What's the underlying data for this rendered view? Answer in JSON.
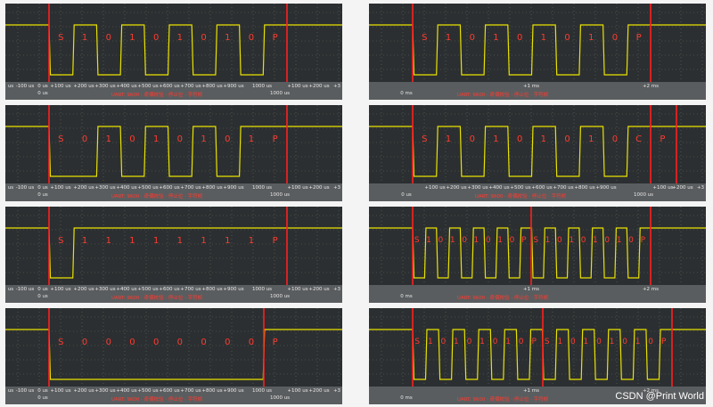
{
  "watermark": "CSDN @Print World",
  "colors": {
    "background": "#2c2f31",
    "axis_bar": "#5a5d5f",
    "signal": "#e8e200",
    "marker": "#ff1f1f",
    "grid": "#5d6f5d"
  },
  "panels": [
    {
      "id": "left-1",
      "bits": [
        "S",
        "1",
        "0",
        "1",
        "0",
        "1",
        "0",
        "1",
        "0",
        "P"
      ],
      "ticks": [
        "us",
        "-100 us",
        "0 us",
        "+100 us",
        "+200 us",
        "+300 us",
        "+400 us",
        "+500 us",
        "+600 us",
        "+700 us",
        "+800 us",
        "+900 us",
        "1000 us",
        "+100 us",
        "+200 us",
        "+3"
      ],
      "sub_labels": [
        "0 us",
        "1000 us"
      ],
      "red_label": "UART: 9600 · 奇偶校验 · 停止位 · 字符帧"
    },
    {
      "id": "left-2",
      "bits": [
        "S",
        "0",
        "1",
        "0",
        "1",
        "0",
        "1",
        "0",
        "1",
        "P"
      ],
      "ticks": [
        "us",
        "-100 us",
        "0 us",
        "+100 us",
        "+200 us",
        "+300 us",
        "+400 us",
        "+500 us",
        "+600 us",
        "+700 us",
        "+800 us",
        "+900 us",
        "1000 us",
        "+100 us",
        "+200 us",
        "+3"
      ],
      "sub_labels": [
        "0 us",
        "1000 us"
      ],
      "red_label": "UART: 9600 · 奇偶校验 · 停止位 · 字符帧"
    },
    {
      "id": "left-3",
      "bits": [
        "S",
        "1",
        "1",
        "1",
        "1",
        "1",
        "1",
        "1",
        "1",
        "P"
      ],
      "ticks": [
        "us",
        "-100 us",
        "0 us",
        "+100 us",
        "+200 us",
        "+300 us",
        "+400 us",
        "+500 us",
        "+600 us",
        "+700 us",
        "+800 us",
        "+900 us",
        "1000 us",
        "+100 us",
        "+200 us",
        "+3"
      ],
      "sub_labels": [
        "0 us",
        "1000 us"
      ],
      "red_label": "UART: 9600 · 奇偶校验 · 停止位 · 字符帧"
    },
    {
      "id": "left-4",
      "bits": [
        "S",
        "0",
        "0",
        "0",
        "0",
        "0",
        "0",
        "0",
        "0",
        "P"
      ],
      "ticks": [
        "us",
        "-100 us",
        "0 us",
        "+100 us",
        "+200 us",
        "+300 us",
        "+400 us",
        "+500 us",
        "+600 us",
        "+700 us",
        "+800 us",
        "+900 us",
        "1000 us",
        "+100 us",
        "+200 us",
        "+3"
      ],
      "sub_labels": [
        "0 us",
        "1000 us"
      ],
      "red_label": "UART: 9600 · 奇偶校验 · 停止位 · 字符帧"
    },
    {
      "id": "right-1",
      "bits": [
        "S",
        "1",
        "0",
        "1",
        "0",
        "1",
        "0",
        "1",
        "0",
        "P"
      ],
      "ticks": [
        "+1 ms",
        "+2 ms"
      ],
      "sub_labels": [
        "0 ms"
      ],
      "red_label": "UART: 9600 · 奇偶校验 · 停止位 · 字符帧"
    },
    {
      "id": "right-2",
      "bits": [
        "S",
        "1",
        "0",
        "1",
        "0",
        "1",
        "0",
        "1",
        "0",
        "C",
        "P"
      ],
      "ticks": [
        "+100 us",
        "+200 us",
        "+300 us",
        "+400 us",
        "+500 us",
        "+600 us",
        "+700 us",
        "+800 us",
        "+900 us",
        "+100 us",
        "+200 us",
        "+3"
      ],
      "sub_labels": [
        "0 us",
        "1000 us"
      ],
      "red_label": "UART: 9600 · 奇偶校验 · 停止位 · 字符帧"
    },
    {
      "id": "right-3",
      "bits": [
        "S",
        "1",
        "0",
        "1",
        "0",
        "1",
        "0",
        "1",
        "0",
        "P",
        "S",
        "1",
        "0",
        "1",
        "0",
        "1",
        "0",
        "1",
        "0",
        "P"
      ],
      "ticks": [
        "+1 ms",
        "+2 ms"
      ],
      "sub_labels": [
        "0 ms"
      ],
      "red_label": "UART: 9600 · 奇偶校验 · 停止位 · 字符帧"
    },
    {
      "id": "right-4",
      "bits": [
        "S",
        "1",
        "0",
        "1",
        "0",
        "1",
        "0",
        "1",
        "0",
        "P",
        "S",
        "1",
        "0",
        "1",
        "0",
        "1",
        "0",
        "1",
        "0",
        "P"
      ],
      "ticks": [
        "+1 ms",
        "+2 ms"
      ],
      "sub_labels": [
        "0 ms"
      ],
      "red_label": "UART: 9600 · 奇偶校验 · 停止位 · 字符帧"
    }
  ]
}
